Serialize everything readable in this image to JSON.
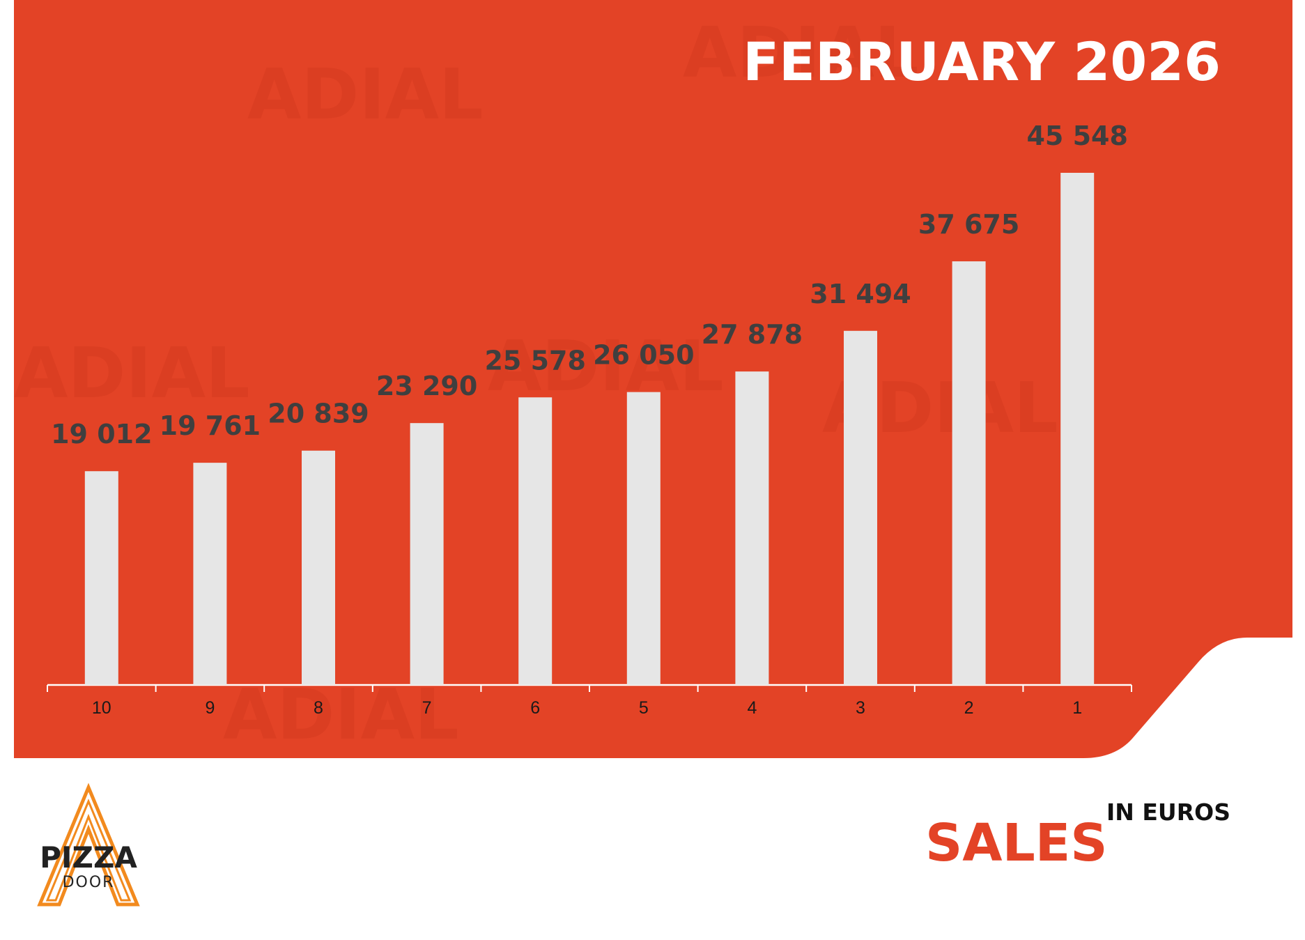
{
  "chart_data": {
    "type": "bar",
    "title": "FEBRUARY 2026",
    "categories": [
      "10",
      "9",
      "8",
      "7",
      "6",
      "5",
      "4",
      "3",
      "2",
      "1"
    ],
    "values": [
      19012,
      19761,
      20839,
      23290,
      25578,
      26050,
      27878,
      31494,
      37675,
      45548
    ],
    "value_labels": [
      "19 012",
      "19 761",
      "20 839",
      "23 290",
      "25 578",
      "26 050",
      "27 878",
      "31 494",
      "37 675",
      "45 548"
    ],
    "color": "#e6e6e6"
  },
  "footer": {
    "title": "SALES",
    "subtitle": "IN EUROS"
  },
  "logo": {
    "name": "PIZZA",
    "sub": "DOOR"
  },
  "watermark": "ADIAL"
}
